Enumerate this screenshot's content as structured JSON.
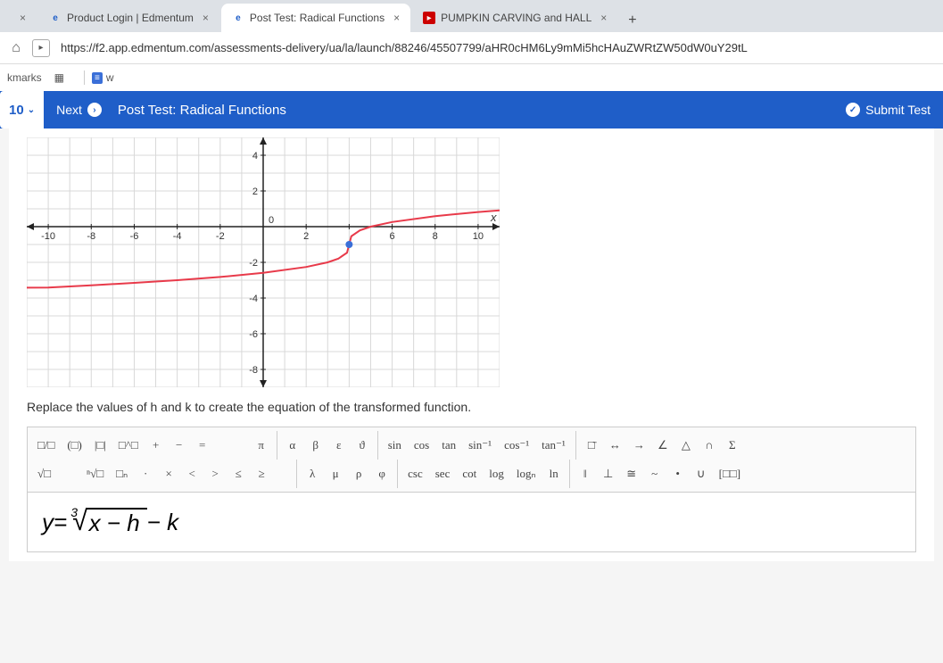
{
  "browser": {
    "tabs": [
      {
        "label": "",
        "icon": "×",
        "active": false
      },
      {
        "label": "Product Login | Edmentum",
        "icon": "e",
        "icon_color": "#1f5ec8",
        "active": false
      },
      {
        "label": "Post Test: Radical Functions",
        "icon": "e",
        "icon_color": "#1f5ec8",
        "active": true
      },
      {
        "label": "PUMPKIN CARVING and HALL",
        "icon": "▸",
        "icon_color": "#cc0000",
        "active": false
      }
    ],
    "new_tab": "+",
    "url": "https://f2.app.edmentum.com/assessments-delivery/ua/la/launch/88246/45507799/aHR0cHM6Ly9mMi5hcHAuZWRtZW50dW0uY29tL",
    "bookmarks_label": "kmarks",
    "bookmark_w": "w"
  },
  "header": {
    "question_number": "10",
    "next_label": "Next",
    "title": "Post Test: Radical Functions",
    "submit_label": "Submit Test"
  },
  "graph": {
    "xmin": -11,
    "xmax": 11,
    "ymin": -9,
    "ymax": 5,
    "x_ticks": [
      -10,
      -8,
      -6,
      -4,
      -2,
      2,
      4,
      6,
      8,
      10
    ],
    "y_ticks": [
      -8,
      -6,
      -4,
      -2,
      2,
      4
    ],
    "x_tick_labels": [
      "-10",
      "-8",
      "-6",
      "-4",
      "-2",
      "2",
      "",
      "6",
      "8",
      "10"
    ],
    "y_tick_labels": [
      "-8",
      "-6",
      "-4",
      "-2",
      "2",
      "4"
    ],
    "x_axis_label": "x",
    "origin_label": "0",
    "grid_color": "#d8d8d8",
    "axis_color": "#222222",
    "curve_color": "#e83a4a",
    "point_color": "#3a6fd8",
    "curve_points": [
      [
        -11,
        -3.42
      ],
      [
        -10,
        -3.41
      ],
      [
        -8,
        -3.29
      ],
      [
        -6,
        -3.15
      ],
      [
        -4,
        -3
      ],
      [
        -2,
        -2.82
      ],
      [
        0,
        -2.59
      ],
      [
        2,
        -2.26
      ],
      [
        3,
        -2
      ],
      [
        3.5,
        -1.79
      ],
      [
        3.9,
        -1.46
      ],
      [
        4,
        -1
      ],
      [
        4.1,
        -0.54
      ],
      [
        4.5,
        -0.21
      ],
      [
        5,
        0
      ],
      [
        6,
        0.26
      ],
      [
        8,
        0.59
      ],
      [
        10,
        0.82
      ],
      [
        11,
        0.91
      ]
    ],
    "point": [
      4,
      -1
    ]
  },
  "prompt": "Replace the values of h and k to create the equation of the transformed function.",
  "toolbar": {
    "row1": [
      "□/□",
      "(□)",
      "|□|",
      "□^□",
      "+",
      "−",
      "="
    ],
    "pi": "π",
    "greek1": [
      "α",
      "β",
      "ε",
      "ϑ"
    ],
    "trig1": [
      "sin",
      "cos",
      "tan",
      "sin⁻¹",
      "cos⁻¹",
      "tan⁻¹"
    ],
    "misc1": [
      "□̄",
      "↔",
      "→",
      "∠",
      "△",
      "∩",
      "Σ"
    ],
    "row2": [
      "√□",
      "",
      "ⁿ√□",
      "□ₙ",
      "·",
      "×",
      "<",
      ">",
      "≤",
      "≥"
    ],
    "greek2": [
      "λ",
      "μ",
      "ρ",
      "φ"
    ],
    "trig2": [
      "csc",
      "sec",
      "cot",
      "log",
      "logₙ",
      "ln"
    ],
    "misc2": [
      "‖",
      "⊥",
      "≅",
      "~",
      "•",
      "∪",
      "[□□]"
    ]
  },
  "equation": {
    "lhs": "y",
    "eq": " = ",
    "index": "3",
    "radical": "√",
    "radicand": "x − h",
    "tail": " − k"
  }
}
